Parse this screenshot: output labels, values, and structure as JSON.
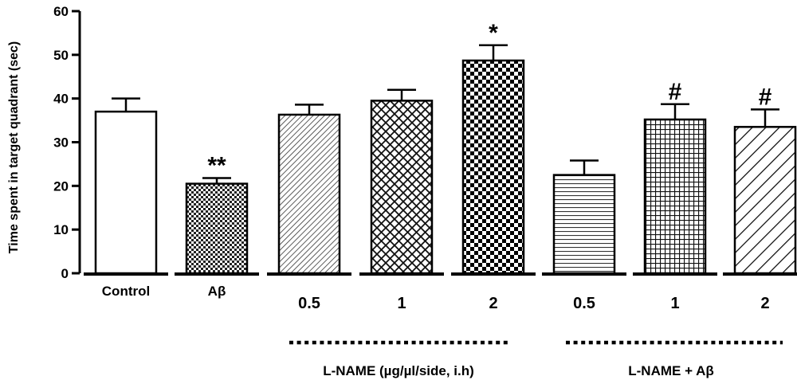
{
  "chart_data": {
    "type": "bar",
    "title": "",
    "xlabel": "",
    "ylabel": "Time spent in target quadrant (sec)",
    "ylim": [
      0,
      60
    ],
    "yticks": [
      "0",
      "10",
      "20",
      "30",
      "40",
      "50",
      "60"
    ],
    "categories": [
      "Control",
      "Aβ",
      "0.5",
      "1",
      "2",
      "0.5",
      "1",
      "2"
    ],
    "values": [
      37,
      20.5,
      36.3,
      39.5,
      48.7,
      22.5,
      35.2,
      33.5
    ],
    "errors": [
      3.0,
      1.3,
      2.3,
      2.5,
      3.5,
      3.3,
      3.5,
      4.0
    ],
    "annotations": [
      "",
      "**",
      "",
      "",
      "*",
      "",
      "#",
      "#"
    ],
    "patterns": [
      "none",
      "checker-small",
      "diag-fine",
      "crosshatch",
      "checker-large",
      "horizontal",
      "grid",
      "diag-wide"
    ],
    "groups": [
      {
        "label": "L-NAME (µg/µl/side, i.h)",
        "categories": [
          "0.5",
          "1",
          "2"
        ]
      },
      {
        "label": "L-NAME + Aβ",
        "categories": [
          "0.5",
          "1",
          "2"
        ]
      }
    ],
    "grid": false,
    "legend": "none"
  }
}
